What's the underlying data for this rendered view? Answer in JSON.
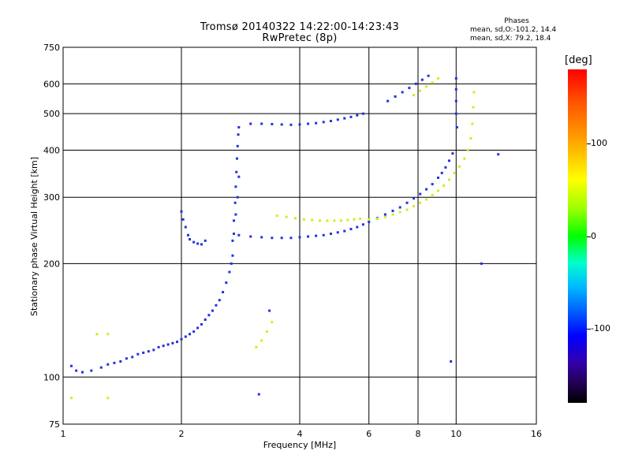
{
  "header": {
    "title_line1": "Tromsø 20140322 14:22:00-14:23:43",
    "title_line2": "RwPretec (8p)"
  },
  "phases_box": {
    "heading": "Phases",
    "line_o": "mean, sd,O:-101.2, 14.4",
    "line_x": "mean, sd,X:  79.2, 18.4"
  },
  "colorbar": {
    "unit": "[deg]",
    "ticks": [
      {
        "value": 100,
        "label": "100"
      },
      {
        "value": 0,
        "label": "0"
      },
      {
        "value": -100,
        "label": "-100"
      }
    ],
    "range": [
      -180,
      180
    ],
    "colors": [
      "#ff0000",
      "#ffff00",
      "#00ff00",
      "#0000ff",
      "#000000"
    ]
  },
  "chart_data": {
    "type": "scatter",
    "title": "Tromsø 20140322 14:22:00-14:23:43",
    "subtitle": "RwPretec (8p)",
    "xlabel": "Frequency [MHz]",
    "ylabel": "Stationary phase Virtual Height [km]",
    "x_scale": "log",
    "y_scale": "log",
    "xlim": [
      1,
      16
    ],
    "ylim": [
      75,
      750
    ],
    "x_ticks": [
      1,
      2,
      4,
      6,
      8,
      10,
      16
    ],
    "x_tick_labels": [
      "1",
      "2",
      "4",
      "6",
      "8",
      "10",
      "16"
    ],
    "y_ticks": [
      75,
      100,
      200,
      300,
      400,
      500,
      600,
      750
    ],
    "y_tick_labels": [
      "75",
      "100",
      "200",
      "300",
      "400",
      "500",
      "600",
      "750"
    ],
    "grid": true,
    "series": [
      {
        "mode": "O",
        "color": "#2233dd",
        "points": [
          [
            1.05,
            107
          ],
          [
            1.08,
            104
          ],
          [
            1.12,
            103
          ],
          [
            1.18,
            104
          ],
          [
            1.25,
            106
          ],
          [
            1.3,
            108
          ],
          [
            1.35,
            109
          ],
          [
            1.4,
            110
          ],
          [
            1.45,
            112
          ],
          [
            1.5,
            113
          ],
          [
            1.55,
            115
          ],
          [
            1.6,
            116
          ],
          [
            1.65,
            117
          ],
          [
            1.7,
            118
          ],
          [
            1.75,
            120
          ],
          [
            1.8,
            121
          ],
          [
            1.85,
            122
          ],
          [
            1.9,
            123
          ],
          [
            1.95,
            124
          ],
          [
            2.0,
            126
          ],
          [
            2.05,
            128
          ],
          [
            2.1,
            130
          ],
          [
            2.15,
            132
          ],
          [
            2.2,
            135
          ],
          [
            2.25,
            138
          ],
          [
            2.3,
            142
          ],
          [
            2.35,
            146
          ],
          [
            2.4,
            150
          ],
          [
            2.45,
            155
          ],
          [
            2.5,
            160
          ],
          [
            2.55,
            168
          ],
          [
            2.6,
            178
          ],
          [
            2.65,
            190
          ],
          [
            2.68,
            200
          ],
          [
            2.7,
            210
          ],
          [
            2.0,
            275
          ],
          [
            2.02,
            262
          ],
          [
            2.05,
            250
          ],
          [
            2.08,
            238
          ],
          [
            2.1,
            232
          ],
          [
            2.15,
            228
          ],
          [
            2.2,
            226
          ],
          [
            2.25,
            225
          ],
          [
            2.3,
            230
          ],
          [
            2.7,
            230
          ],
          [
            2.72,
            260
          ],
          [
            2.74,
            290
          ],
          [
            2.75,
            320
          ],
          [
            2.76,
            350
          ],
          [
            2.77,
            380
          ],
          [
            2.78,
            410
          ],
          [
            2.79,
            440
          ],
          [
            2.8,
            460
          ],
          [
            2.75,
            270
          ],
          [
            2.78,
            300
          ],
          [
            2.8,
            340
          ],
          [
            2.72,
            240
          ],
          [
            2.8,
            238
          ],
          [
            3.0,
            236
          ],
          [
            3.2,
            235
          ],
          [
            3.4,
            234
          ],
          [
            3.6,
            234
          ],
          [
            3.8,
            234
          ],
          [
            4.0,
            235
          ],
          [
            4.2,
            236
          ],
          [
            4.4,
            237
          ],
          [
            4.6,
            238
          ],
          [
            4.8,
            240
          ],
          [
            5.0,
            242
          ],
          [
            5.2,
            244
          ],
          [
            5.4,
            247
          ],
          [
            5.6,
            250
          ],
          [
            5.8,
            254
          ],
          [
            6.0,
            258
          ],
          [
            6.3,
            264
          ],
          [
            6.6,
            270
          ],
          [
            6.9,
            276
          ],
          [
            7.2,
            282
          ],
          [
            7.5,
            290
          ],
          [
            7.8,
            298
          ],
          [
            8.1,
            306
          ],
          [
            8.4,
            315
          ],
          [
            8.7,
            325
          ],
          [
            9.0,
            338
          ],
          [
            9.2,
            348
          ],
          [
            9.4,
            360
          ],
          [
            9.6,
            375
          ],
          [
            9.8,
            392
          ],
          [
            3.0,
            470
          ],
          [
            3.2,
            470
          ],
          [
            3.4,
            469
          ],
          [
            3.6,
            468
          ],
          [
            3.8,
            467
          ],
          [
            4.0,
            468
          ],
          [
            4.2,
            470
          ],
          [
            4.4,
            472
          ],
          [
            4.6,
            475
          ],
          [
            4.8,
            478
          ],
          [
            5.0,
            482
          ],
          [
            5.2,
            486
          ],
          [
            5.4,
            490
          ],
          [
            5.6,
            495
          ],
          [
            5.8,
            500
          ],
          [
            6.7,
            540
          ],
          [
            7.0,
            555
          ],
          [
            7.3,
            570
          ],
          [
            7.6,
            585
          ],
          [
            7.9,
            600
          ],
          [
            8.2,
            615
          ],
          [
            8.5,
            630
          ],
          [
            10.0,
            620
          ],
          [
            10.0,
            580
          ],
          [
            10.0,
            540
          ],
          [
            10.0,
            500
          ],
          [
            10.05,
            460
          ],
          [
            3.15,
            90
          ],
          [
            9.7,
            110
          ],
          [
            12.8,
            390
          ],
          [
            11.6,
            200
          ],
          [
            3.35,
            150
          ]
        ]
      },
      {
        "mode": "X",
        "color": "#ccee22",
        "points": [
          [
            3.5,
            268
          ],
          [
            3.7,
            266
          ],
          [
            3.9,
            264
          ],
          [
            4.1,
            262
          ],
          [
            4.3,
            261
          ],
          [
            4.5,
            260
          ],
          [
            4.7,
            260
          ],
          [
            4.9,
            260
          ],
          [
            5.1,
            260
          ],
          [
            5.3,
            261
          ],
          [
            5.5,
            262
          ],
          [
            5.7,
            263
          ],
          [
            6.0,
            262
          ],
          [
            6.3,
            263
          ],
          [
            6.6,
            266
          ],
          [
            6.9,
            270
          ],
          [
            7.2,
            274
          ],
          [
            7.5,
            278
          ],
          [
            7.8,
            284
          ],
          [
            8.1,
            290
          ],
          [
            8.4,
            296
          ],
          [
            8.7,
            304
          ],
          [
            9.0,
            312
          ],
          [
            9.3,
            322
          ],
          [
            9.6,
            334
          ],
          [
            9.9,
            348
          ],
          [
            10.2,
            362
          ],
          [
            10.5,
            380
          ],
          [
            10.7,
            400
          ],
          [
            10.9,
            430
          ],
          [
            11.0,
            470
          ],
          [
            11.05,
            520
          ],
          [
            11.1,
            570
          ],
          [
            7.8,
            560
          ],
          [
            8.1,
            575
          ],
          [
            8.4,
            590
          ],
          [
            8.7,
            605
          ],
          [
            9.0,
            620
          ],
          [
            3.1,
            120
          ],
          [
            3.2,
            125
          ],
          [
            3.3,
            132
          ],
          [
            3.4,
            140
          ],
          [
            1.05,
            88
          ],
          [
            1.3,
            88
          ],
          [
            1.22,
            130
          ],
          [
            1.3,
            130
          ]
        ]
      }
    ]
  }
}
